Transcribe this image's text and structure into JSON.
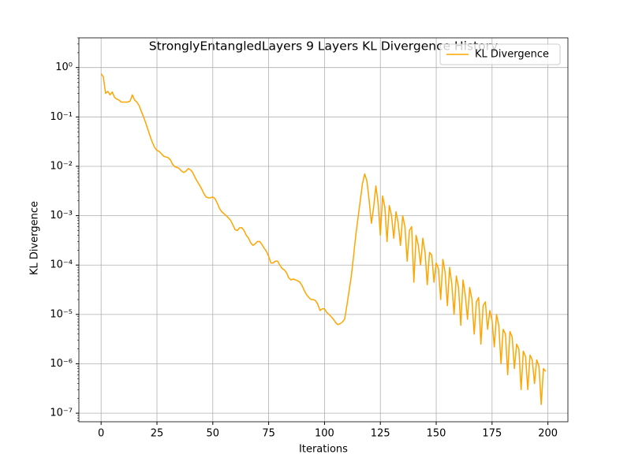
{
  "chart_data": {
    "type": "line",
    "title": "StronglyEntangledLayers 9 Layers KL Divergence History",
    "xlabel": "Iterations",
    "ylabel": "KL Divergence",
    "yscale": "log",
    "grid": true,
    "legend": "upper right",
    "xlim": [
      -9.95,
      208.95
    ],
    "ylim": [
      6.7e-08,
      4.0
    ],
    "xticks": [
      0,
      25,
      50,
      75,
      100,
      125,
      150,
      175,
      200
    ],
    "yticks": [
      {
        "value": 1e-07,
        "label": "10⁻⁷"
      },
      {
        "value": 1e-06,
        "label": "10⁻⁶"
      },
      {
        "value": 1e-05,
        "label": "10⁻⁵"
      },
      {
        "value": 0.0001,
        "label": "10⁻⁴"
      },
      {
        "value": 0.001,
        "label": "10⁻³"
      },
      {
        "value": 0.01,
        "label": "10⁻²"
      },
      {
        "value": 0.1,
        "label": "10⁻¹"
      },
      {
        "value": 1,
        "label": "10⁰"
      }
    ],
    "x": [
      0,
      1,
      2,
      3,
      4,
      5,
      6,
      7,
      8,
      9,
      10,
      11,
      12,
      13,
      14,
      15,
      16,
      17,
      18,
      19,
      20,
      21,
      22,
      23,
      24,
      25,
      26,
      27,
      28,
      29,
      30,
      31,
      32,
      33,
      34,
      35,
      36,
      37,
      38,
      39,
      40,
      41,
      42,
      43,
      44,
      45,
      46,
      47,
      48,
      49,
      50,
      51,
      52,
      53,
      54,
      55,
      56,
      57,
      58,
      59,
      60,
      61,
      62,
      63,
      64,
      65,
      66,
      67,
      68,
      69,
      70,
      71,
      72,
      73,
      74,
      75,
      76,
      77,
      78,
      79,
      80,
      81,
      82,
      83,
      84,
      85,
      86,
      87,
      88,
      89,
      90,
      91,
      92,
      93,
      94,
      95,
      96,
      97,
      98,
      99,
      100,
      101,
      102,
      103,
      104,
      105,
      106,
      107,
      108,
      109,
      110,
      111,
      112,
      113,
      114,
      115,
      116,
      117,
      118,
      119,
      120,
      121,
      122,
      123,
      124,
      125,
      126,
      127,
      128,
      129,
      130,
      131,
      132,
      133,
      134,
      135,
      136,
      137,
      138,
      139,
      140,
      141,
      142,
      143,
      144,
      145,
      146,
      147,
      148,
      149,
      150,
      151,
      152,
      153,
      154,
      155,
      156,
      157,
      158,
      159,
      160,
      161,
      162,
      163,
      164,
      165,
      166,
      167,
      168,
      169,
      170,
      171,
      172,
      173,
      174,
      175,
      176,
      177,
      178,
      179,
      180,
      181,
      182,
      183,
      184,
      185,
      186,
      187,
      188,
      189,
      190,
      191,
      192,
      193,
      194,
      195,
      196,
      197,
      198,
      199
    ],
    "series": [
      {
        "name": "KL Divergence",
        "color": "#ffa500",
        "values": [
          0.75,
          0.65,
          0.3,
          0.33,
          0.28,
          0.32,
          0.25,
          0.23,
          0.22,
          0.2,
          0.2,
          0.2,
          0.2,
          0.21,
          0.28,
          0.22,
          0.2,
          0.17,
          0.13,
          0.1,
          0.075,
          0.055,
          0.04,
          0.03,
          0.024,
          0.021,
          0.02,
          0.018,
          0.016,
          0.0155,
          0.015,
          0.0135,
          0.011,
          0.0098,
          0.0095,
          0.009,
          0.008,
          0.0075,
          0.008,
          0.009,
          0.0085,
          0.0075,
          0.006,
          0.005,
          0.0042,
          0.0035,
          0.0028,
          0.0024,
          0.0023,
          0.0023,
          0.0024,
          0.0022,
          0.0018,
          0.0014,
          0.0012,
          0.0011,
          0.001,
          0.0009,
          0.0008,
          0.00065,
          0.00052,
          0.0005,
          0.00057,
          0.00057,
          0.0005,
          0.0004,
          0.00035,
          0.00028,
          0.00025,
          0.00027,
          0.0003,
          0.0003,
          0.00026,
          0.00022,
          0.00019,
          0.00015,
          0.00011,
          0.00011,
          0.00012,
          0.00012,
          0.0001,
          8.5e-05,
          8e-05,
          7e-05,
          5.5e-05,
          5e-05,
          5.2e-05,
          5e-05,
          4.8e-05,
          4.5e-05,
          3.8e-05,
          3e-05,
          2.5e-05,
          2.2e-05,
          2e-05,
          2e-05,
          1.9e-05,
          1.6e-05,
          1.2e-05,
          1.3e-05,
          1.3e-05,
          1.1e-05,
          1e-05,
          9e-06,
          8e-06,
          6.8e-06,
          6.2e-06,
          6.5e-06,
          7e-06,
          8e-06,
          1.5e-05,
          3e-05,
          6e-05,
          0.00015,
          0.0004,
          0.0009,
          0.002,
          0.0045,
          0.007,
          0.005,
          0.002,
          0.0007,
          0.0015,
          0.004,
          0.0018,
          0.0004,
          0.0025,
          0.0015,
          0.0003,
          0.0016,
          0.001,
          0.00035,
          0.0012,
          0.0007,
          0.00025,
          0.001,
          0.0006,
          0.00012,
          0.0005,
          0.0006,
          4.5e-05,
          0.0004,
          0.00025,
          0.0001,
          0.00035,
          0.00018,
          4e-05,
          0.00018,
          0.00016,
          4.5e-05,
          0.00011,
          8.5e-05,
          2e-05,
          0.00013,
          7e-05,
          1.5e-05,
          9e-05,
          4e-05,
          1e-05,
          6e-05,
          3.5e-05,
          6e-06,
          5e-05,
          2.5e-05,
          8e-06,
          3.5e-05,
          2e-05,
          4e-06,
          1.8e-05,
          2.2e-05,
          2.5e-06,
          1.5e-05,
          1.8e-05,
          5e-06,
          1.2e-05,
          7.5e-06,
          2.2e-06,
          1e-05,
          6e-06,
          1e-06,
          5e-06,
          4e-06,
          6e-07,
          4.5e-06,
          3.5e-06,
          8e-07,
          2.5e-06,
          2e-06,
          3e-07,
          1.8e-06,
          1.4e-06,
          3e-07,
          1.5e-06,
          1.2e-06,
          4e-07,
          1.2e-06,
          9e-07,
          1.5e-07,
          8e-07,
          7e-07
        ]
      }
    ]
  }
}
